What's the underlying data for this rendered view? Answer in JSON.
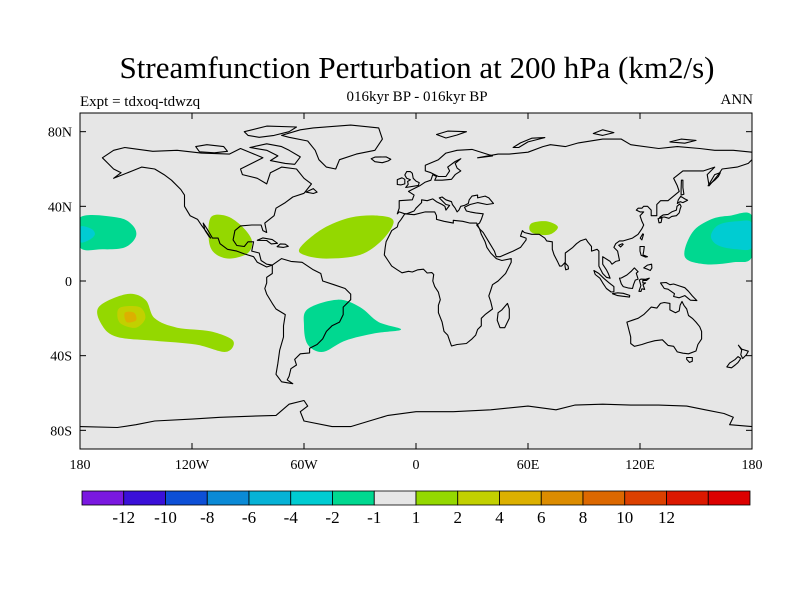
{
  "chart_data": {
    "type": "heatmap",
    "title": "Streamfunction Perturbation at 200 hPa (km2/s)",
    "subtitle": "016kyr BP - 016kyr BP",
    "left_label": "Expt = tdxoq-tdwzq",
    "right_label": "ANN",
    "xlim": [
      -180,
      180
    ],
    "ylim": [
      -90,
      90
    ],
    "x_ticks": [
      {
        "value": -180,
        "label": "180"
      },
      {
        "value": -120,
        "label": "120W"
      },
      {
        "value": -60,
        "label": "60W"
      },
      {
        "value": 0,
        "label": "0"
      },
      {
        "value": 60,
        "label": "60E"
      },
      {
        "value": 120,
        "label": "120E"
      },
      {
        "value": 180,
        "label": "180"
      }
    ],
    "y_ticks": [
      {
        "value": 80,
        "label": "80N"
      },
      {
        "value": 40,
        "label": "40N"
      },
      {
        "value": 0,
        "label": "0"
      },
      {
        "value": -40,
        "label": "40S"
      },
      {
        "value": -80,
        "label": "80S"
      }
    ],
    "background_color": "#e6e6e6",
    "colorbar": {
      "colors": [
        "#7a18e0",
        "#3a10d8",
        "#0d4fd6",
        "#0a8ad6",
        "#06b2d6",
        "#00ccd2",
        "#00d890",
        "#e6e6e6",
        "#94d800",
        "#c2d000",
        "#dcb000",
        "#dc8c00",
        "#dc6800",
        "#dc4000",
        "#dc1800",
        "#dc0000"
      ],
      "labels": [
        "-12",
        "-10",
        "-8",
        "-6",
        "-4",
        "-2",
        "-1",
        "1",
        "2",
        "4",
        "6",
        "8",
        "10",
        "12"
      ]
    },
    "regions": [
      {
        "name": "north-pacific-west",
        "color": "#00d890",
        "level": "-2 to -1",
        "polygon": [
          [
            -180,
            34
          ],
          [
            -160,
            34
          ],
          [
            -152,
            30
          ],
          [
            -150,
            24
          ],
          [
            -156,
            18
          ],
          [
            -168,
            17
          ],
          [
            -180,
            18
          ]
        ]
      },
      {
        "name": "north-pacific-west-core",
        "color": "#00ccd2",
        "level": "-4 to -2",
        "polygon": [
          [
            -180,
            29
          ],
          [
            -174,
            28
          ],
          [
            -172,
            25
          ],
          [
            -175,
            22
          ],
          [
            -180,
            21
          ]
        ]
      },
      {
        "name": "mexico-gulf",
        "color": "#94d800",
        "level": "1 to 2",
        "polygon": [
          [
            -110,
            34
          ],
          [
            -102,
            35
          ],
          [
            -94,
            30
          ],
          [
            -88,
            22
          ],
          [
            -90,
            15
          ],
          [
            -100,
            12
          ],
          [
            -108,
            15
          ],
          [
            -111,
            22
          ]
        ]
      },
      {
        "name": "north-atlantic",
        "color": "#94d800",
        "level": "1 to 2",
        "polygon": [
          [
            -62,
            18
          ],
          [
            -50,
            28
          ],
          [
            -35,
            34
          ],
          [
            -20,
            35
          ],
          [
            -12,
            32
          ],
          [
            -18,
            22
          ],
          [
            -30,
            14
          ],
          [
            -48,
            12
          ],
          [
            -60,
            14
          ]
        ]
      },
      {
        "name": "arabia",
        "color": "#94d800",
        "level": "1 to 2",
        "polygon": [
          [
            62,
            31
          ],
          [
            70,
            32
          ],
          [
            76,
            29
          ],
          [
            72,
            25
          ],
          [
            65,
            25
          ],
          [
            61,
            27
          ]
        ]
      },
      {
        "name": "west-pacific-outer",
        "color": "#00d890",
        "level": "-2 to -1",
        "polygon": [
          [
            144,
            13
          ],
          [
            148,
            26
          ],
          [
            158,
            33
          ],
          [
            168,
            35
          ],
          [
            180,
            35
          ],
          [
            180,
            13
          ],
          [
            170,
            10
          ],
          [
            155,
            9
          ]
        ]
      },
      {
        "name": "west-pacific-core",
        "color": "#00ccd2",
        "level": "-4 to -2",
        "polygon": [
          [
            158,
            24
          ],
          [
            162,
            30
          ],
          [
            172,
            32
          ],
          [
            180,
            31
          ],
          [
            180,
            18
          ],
          [
            172,
            17
          ],
          [
            162,
            19
          ]
        ]
      },
      {
        "name": "south-pacific-outer",
        "color": "#94d800",
        "level": "1 to 2",
        "polygon": [
          [
            -170,
            -14
          ],
          [
            -155,
            -7
          ],
          [
            -145,
            -10
          ],
          [
            -140,
            -20
          ],
          [
            -128,
            -25
          ],
          [
            -110,
            -27
          ],
          [
            -98,
            -32
          ],
          [
            -102,
            -38
          ],
          [
            -118,
            -34
          ],
          [
            -140,
            -32
          ],
          [
            -160,
            -30
          ],
          [
            -168,
            -24
          ]
        ]
      },
      {
        "name": "south-pacific-inner",
        "color": "#c2d000",
        "level": "2 to 4",
        "polygon": [
          [
            -158,
            -14
          ],
          [
            -148,
            -14
          ],
          [
            -145,
            -20
          ],
          [
            -150,
            -25
          ],
          [
            -158,
            -23
          ],
          [
            -160,
            -18
          ]
        ]
      },
      {
        "name": "south-pacific-core",
        "color": "#dcb000",
        "level": "4 to 6",
        "polygon": [
          [
            -156,
            -17
          ],
          [
            -151,
            -17
          ],
          [
            -150,
            -21
          ],
          [
            -155,
            -22
          ]
        ]
      },
      {
        "name": "south-atlantic",
        "color": "#00d890",
        "level": "-2 to -1",
        "polygon": [
          [
            -58,
            -15
          ],
          [
            -42,
            -10
          ],
          [
            -30,
            -14
          ],
          [
            -20,
            -22
          ],
          [
            -8,
            -26
          ],
          [
            -22,
            -28
          ],
          [
            -38,
            -32
          ],
          [
            -50,
            -38
          ],
          [
            -58,
            -34
          ],
          [
            -60,
            -24
          ]
        ]
      }
    ]
  }
}
